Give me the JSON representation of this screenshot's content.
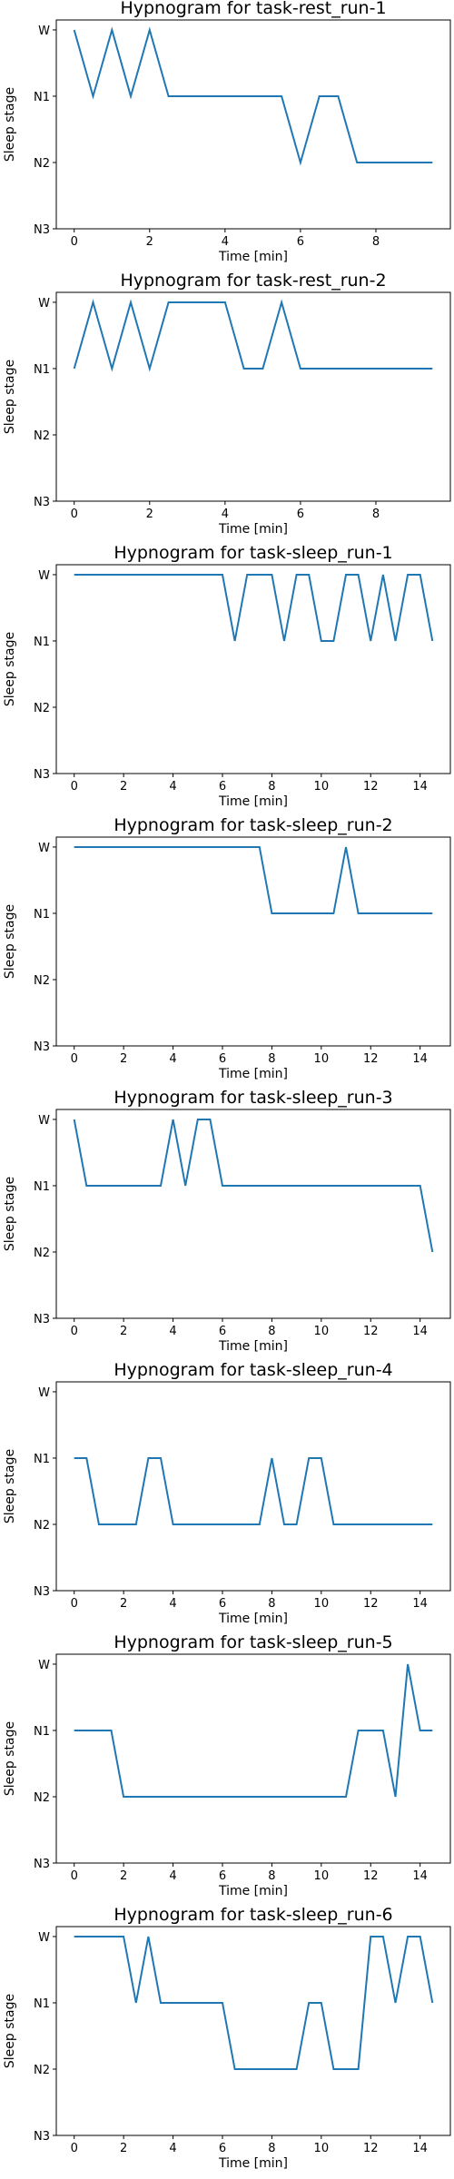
{
  "chart_data": [
    {
      "type": "line",
      "title": "Hypnogram for task-rest_run-1",
      "xlabel": "Time [min]",
      "ylabel": "Sleep stage",
      "xlim": [
        -0.475,
        9.975
      ],
      "xticks": [
        0,
        2,
        4,
        6,
        8
      ],
      "yticks": [
        "W",
        "N1",
        "N2",
        "N3"
      ],
      "x": [
        0,
        0.5,
        1,
        1.5,
        2,
        2.5,
        3,
        3.5,
        4,
        4.5,
        5,
        5.5,
        6,
        6.5,
        7,
        7.5,
        8,
        8.5,
        9,
        9.5
      ],
      "y": [
        "W",
        "N1",
        "W",
        "N1",
        "W",
        "N1",
        "N1",
        "N1",
        "N1",
        "N1",
        "N1",
        "N1",
        "N2",
        "N1",
        "N1",
        "N2",
        "N2",
        "N2",
        "N2",
        "N2"
      ],
      "grid": false
    },
    {
      "type": "line",
      "title": "Hypnogram for task-rest_run-2",
      "xlabel": "Time [min]",
      "ylabel": "Sleep stage",
      "xlim": [
        -0.475,
        9.975
      ],
      "xticks": [
        0,
        2,
        4,
        6,
        8
      ],
      "yticks": [
        "W",
        "N1",
        "N2",
        "N3"
      ],
      "x": [
        0,
        0.5,
        1,
        1.5,
        2,
        2.5,
        3,
        3.5,
        4,
        4.5,
        5,
        5.5,
        6,
        6.5,
        7,
        7.5,
        8,
        8.5,
        9,
        9.5
      ],
      "y": [
        "N1",
        "W",
        "N1",
        "W",
        "N1",
        "W",
        "W",
        "W",
        "W",
        "N1",
        "N1",
        "W",
        "N1",
        "N1",
        "N1",
        "N1",
        "N1",
        "N1",
        "N1",
        "N1"
      ],
      "grid": false
    },
    {
      "type": "line",
      "title": "Hypnogram for task-sleep_run-1",
      "xlabel": "Time [min]",
      "ylabel": "Sleep stage",
      "xlim": [
        -0.725,
        15.225
      ],
      "xticks": [
        0,
        2,
        4,
        6,
        8,
        10,
        12,
        14
      ],
      "yticks": [
        "W",
        "N1",
        "N2",
        "N3"
      ],
      "x": [
        0,
        0.5,
        1,
        1.5,
        2,
        2.5,
        3,
        3.5,
        4,
        4.5,
        5,
        5.5,
        6,
        6.5,
        7,
        7.5,
        8,
        8.5,
        9,
        9.5,
        10,
        10.5,
        11,
        11.5,
        12,
        12.5,
        13,
        13.5,
        14,
        14.5
      ],
      "y": [
        "W",
        "W",
        "W",
        "W",
        "W",
        "W",
        "W",
        "W",
        "W",
        "W",
        "W",
        "W",
        "W",
        "N1",
        "W",
        "W",
        "W",
        "N1",
        "W",
        "W",
        "N1",
        "N1",
        "W",
        "W",
        "N1",
        "W",
        "N1",
        "W",
        "W",
        "N1"
      ],
      "grid": false
    },
    {
      "type": "line",
      "title": "Hypnogram for task-sleep_run-2",
      "xlabel": "Time [min]",
      "ylabel": "Sleep stage",
      "xlim": [
        -0.725,
        15.225
      ],
      "xticks": [
        0,
        2,
        4,
        6,
        8,
        10,
        12,
        14
      ],
      "yticks": [
        "W",
        "N1",
        "N2",
        "N3"
      ],
      "x": [
        0,
        0.5,
        1,
        1.5,
        2,
        2.5,
        3,
        3.5,
        4,
        4.5,
        5,
        5.5,
        6,
        6.5,
        7,
        7.5,
        8,
        8.5,
        9,
        9.5,
        10,
        10.5,
        11,
        11.5,
        12,
        12.5,
        13,
        13.5,
        14,
        14.5
      ],
      "y": [
        "W",
        "W",
        "W",
        "W",
        "W",
        "W",
        "W",
        "W",
        "W",
        "W",
        "W",
        "W",
        "W",
        "W",
        "W",
        "W",
        "N1",
        "N1",
        "N1",
        "N1",
        "N1",
        "N1",
        "W",
        "N1",
        "N1",
        "N1",
        "N1",
        "N1",
        "N1",
        "N1"
      ],
      "grid": false
    },
    {
      "type": "line",
      "title": "Hypnogram for task-sleep_run-3",
      "xlabel": "Time [min]",
      "ylabel": "Sleep stage",
      "xlim": [
        -0.725,
        15.225
      ],
      "xticks": [
        0,
        2,
        4,
        6,
        8,
        10,
        12,
        14
      ],
      "yticks": [
        "W",
        "N1",
        "N2",
        "N3"
      ],
      "x": [
        0,
        0.5,
        1,
        1.5,
        2,
        2.5,
        3,
        3.5,
        4,
        4.5,
        5,
        5.5,
        6,
        6.5,
        7,
        7.5,
        8,
        8.5,
        9,
        9.5,
        10,
        10.5,
        11,
        11.5,
        12,
        12.5,
        13,
        13.5,
        14,
        14.5
      ],
      "y": [
        "W",
        "N1",
        "N1",
        "N1",
        "N1",
        "N1",
        "N1",
        "N1",
        "W",
        "N1",
        "W",
        "W",
        "N1",
        "N1",
        "N1",
        "N1",
        "N1",
        "N1",
        "N1",
        "N1",
        "N1",
        "N1",
        "N1",
        "N1",
        "N1",
        "N1",
        "N1",
        "N1",
        "N1",
        "N2"
      ],
      "grid": false
    },
    {
      "type": "line",
      "title": "Hypnogram for task-sleep_run-4",
      "xlabel": "Time [min]",
      "ylabel": "Sleep stage",
      "xlim": [
        -0.725,
        15.225
      ],
      "xticks": [
        0,
        2,
        4,
        6,
        8,
        10,
        12,
        14
      ],
      "yticks": [
        "W",
        "N1",
        "N2",
        "N3"
      ],
      "x": [
        0,
        0.5,
        1,
        1.5,
        2,
        2.5,
        3,
        3.5,
        4,
        4.5,
        5,
        5.5,
        6,
        6.5,
        7,
        7.5,
        8,
        8.5,
        9,
        9.5,
        10,
        10.5,
        11,
        11.5,
        12,
        12.5,
        13,
        13.5,
        14,
        14.5
      ],
      "y": [
        "N1",
        "N1",
        "N2",
        "N2",
        "N2",
        "N2",
        "N1",
        "N1",
        "N2",
        "N2",
        "N2",
        "N2",
        "N2",
        "N2",
        "N2",
        "N2",
        "N1",
        "N2",
        "N2",
        "N1",
        "N1",
        "N2",
        "N2",
        "N2",
        "N2",
        "N2",
        "N2",
        "N2",
        "N2",
        "N2"
      ],
      "grid": false
    },
    {
      "type": "line",
      "title": "Hypnogram for task-sleep_run-5",
      "xlabel": "Time [min]",
      "ylabel": "Sleep stage",
      "xlim": [
        -0.725,
        15.225
      ],
      "xticks": [
        0,
        2,
        4,
        6,
        8,
        10,
        12,
        14
      ],
      "yticks": [
        "W",
        "N1",
        "N2",
        "N3"
      ],
      "x": [
        0,
        0.5,
        1,
        1.5,
        2,
        2.5,
        3,
        3.5,
        4,
        4.5,
        5,
        5.5,
        6,
        6.5,
        7,
        7.5,
        8,
        8.5,
        9,
        9.5,
        10,
        10.5,
        11,
        11.5,
        12,
        12.5,
        13,
        13.5,
        14,
        14.5
      ],
      "y": [
        "N1",
        "N1",
        "N1",
        "N1",
        "N2",
        "N2",
        "N2",
        "N2",
        "N2",
        "N2",
        "N2",
        "N2",
        "N2",
        "N2",
        "N2",
        "N2",
        "N2",
        "N2",
        "N2",
        "N2",
        "N2",
        "N2",
        "N2",
        "N1",
        "N1",
        "N1",
        "N2",
        "W",
        "N1",
        "N1"
      ],
      "grid": false
    },
    {
      "type": "line",
      "title": "Hypnogram for task-sleep_run-6",
      "xlabel": "Time [min]",
      "ylabel": "Sleep stage",
      "xlim": [
        -0.725,
        15.225
      ],
      "xticks": [
        0,
        2,
        4,
        6,
        8,
        10,
        12,
        14
      ],
      "yticks": [
        "W",
        "N1",
        "N2",
        "N3"
      ],
      "x": [
        0,
        0.5,
        1,
        1.5,
        2,
        2.5,
        3,
        3.5,
        4,
        4.5,
        5,
        5.5,
        6,
        6.5,
        7,
        7.5,
        8,
        8.5,
        9,
        9.5,
        10,
        10.5,
        11,
        11.5,
        12,
        12.5,
        13,
        13.5,
        14,
        14.5
      ],
      "y": [
        "W",
        "W",
        "W",
        "W",
        "W",
        "N1",
        "W",
        "N1",
        "N1",
        "N1",
        "N1",
        "N1",
        "N1",
        "N2",
        "N2",
        "N2",
        "N2",
        "N2",
        "N2",
        "N1",
        "N1",
        "N2",
        "N2",
        "N2",
        "W",
        "W",
        "N1",
        "W",
        "W",
        "N1"
      ],
      "grid": false
    }
  ]
}
